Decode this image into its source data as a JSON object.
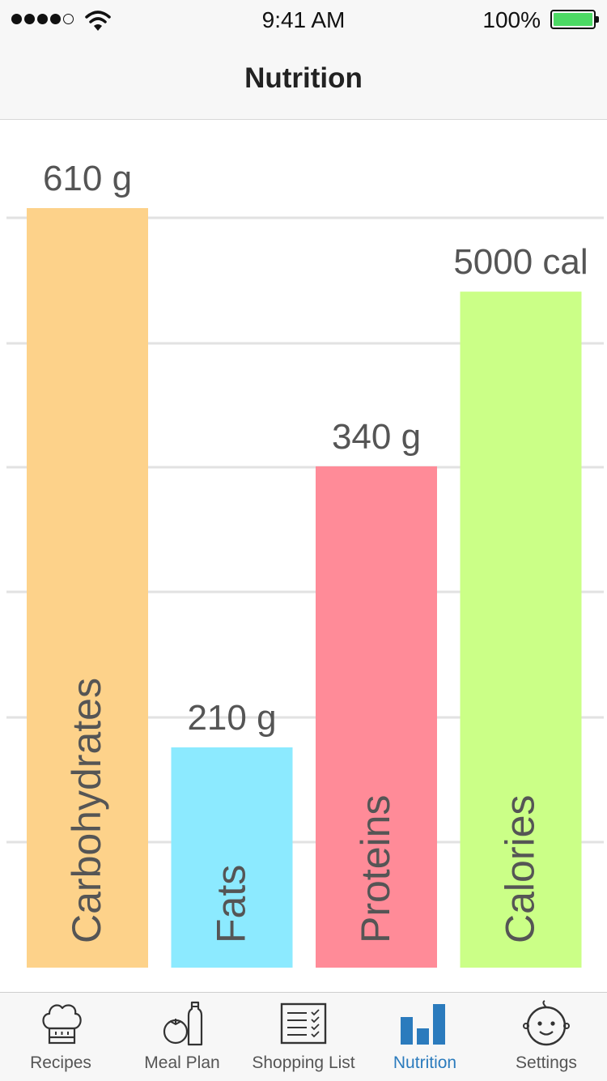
{
  "status_bar": {
    "time": "9:41 AM",
    "battery": "100%"
  },
  "nav": {
    "title": "Nutrition"
  },
  "chart_data": {
    "type": "bar",
    "categories": [
      "Carbohydrates",
      "Fats",
      "Proteins",
      "Calories"
    ],
    "value_labels": [
      "610 g",
      "210 g",
      "340 g",
      "5000 cal"
    ],
    "relative_levels": [
      1.0,
      0.29,
      0.66,
      0.89
    ],
    "colors": [
      "#fdd28a",
      "#8ceaff",
      "#ff8b98",
      "#cbff87"
    ],
    "grid": true
  },
  "tabs": [
    {
      "label": "Recipes",
      "icon": "chef-hat-icon",
      "active": false
    },
    {
      "label": "Meal Plan",
      "icon": "tomato-bottle-icon",
      "active": false
    },
    {
      "label": "Shopping List",
      "icon": "checklist-icon",
      "active": false
    },
    {
      "label": "Nutrition",
      "icon": "bar-chart-icon",
      "active": true
    },
    {
      "label": "Settings",
      "icon": "baby-face-icon",
      "active": false
    }
  ],
  "colors": {
    "accent": "#2b7bbd",
    "grid": "#e2e2e2",
    "chart_text": "#555555"
  }
}
